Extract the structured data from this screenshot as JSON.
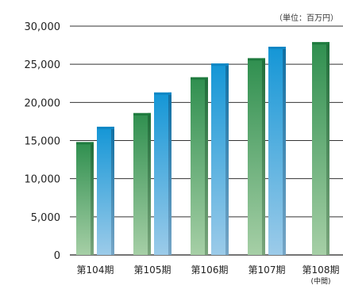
{
  "chart_data": {
    "type": "bar",
    "title": "",
    "unit": "（単位：百万円）",
    "xlabel": "",
    "ylabel": "",
    "ylim": [
      0,
      30000
    ],
    "yticks": [
      "0",
      "5,000",
      "10,000",
      "15,000",
      "20,000",
      "25,000",
      "30,000"
    ],
    "categories": [
      "第104期",
      "第105期",
      "第106期",
      "第107期",
      "第108期"
    ],
    "category_notes": [
      "",
      "",
      "",
      "",
      "(中間)"
    ],
    "grid": true,
    "legend": "none",
    "series": [
      {
        "values": [
          14800,
          18600,
          23300,
          25800,
          27900
        ],
        "color": "#3f9a5f"
      },
      {
        "values": [
          16800,
          21300,
          25100,
          27300,
          null
        ],
        "color": "#1a9ad8"
      }
    ]
  }
}
